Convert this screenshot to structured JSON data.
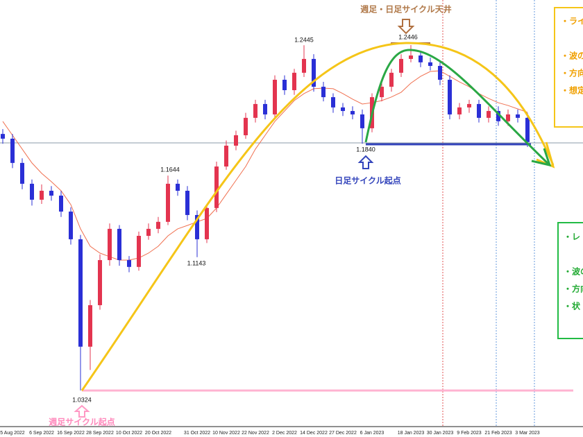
{
  "chart_data": {
    "type": "candlestick",
    "categories": [
      null,
      "5 Aug 2022",
      null,
      null,
      "6 Sep 2022",
      null,
      null,
      "16 Sep 2022",
      null,
      null,
      "28 Sep 2022",
      null,
      null,
      "10 Oct 2022",
      null,
      null,
      "20 Oct 2022",
      null,
      null,
      null,
      "31 Oct 2022",
      null,
      null,
      "10 Nov 2022",
      null,
      null,
      "22 Nov 2022",
      null,
      null,
      "2 Dec 2022",
      null,
      null,
      "14 Dec 2022",
      null,
      null,
      "27 Dec 2022",
      null,
      null,
      "6 Jan 2023",
      null,
      null,
      null,
      "18 Jan 2023",
      null,
      null,
      "30 Jan 2023",
      null,
      null,
      "9 Feb 2023",
      null,
      null,
      "21 Feb 2023",
      null,
      null,
      "3 Mar 2023"
    ],
    "ohlc": [
      [
        1.19,
        1.193,
        1.184,
        1.1871
      ],
      [
        1.1871,
        1.19,
        1.169,
        1.1722
      ],
      [
        1.1722,
        1.175,
        1.156,
        1.1594
      ],
      [
        1.1594,
        1.162,
        1.146,
        1.1496
      ],
      [
        1.1496,
        1.159,
        1.147,
        1.1551
      ],
      [
        1.1551,
        1.158,
        1.149,
        1.1521
      ],
      [
        1.1521,
        1.155,
        1.139,
        1.1423
      ],
      [
        1.1423,
        1.145,
        1.122,
        1.1253
      ],
      [
        1.1253,
        1.128,
        1.0324,
        1.0593
      ],
      [
        1.0593,
        1.088,
        1.045,
        1.0848
      ],
      [
        1.0848,
        1.116,
        1.082,
        1.1125
      ],
      [
        1.1125,
        1.135,
        1.109,
        1.1317
      ],
      [
        1.1317,
        1.134,
        1.109,
        1.1125
      ],
      [
        1.1125,
        1.115,
        1.105,
        1.1083
      ],
      [
        1.1083,
        1.13,
        1.106,
        1.1274
      ],
      [
        1.1274,
        1.135,
        1.125,
        1.1317
      ],
      [
        1.1317,
        1.139,
        1.129,
        1.136
      ],
      [
        1.136,
        1.1644,
        1.134,
        1.1594
      ],
      [
        1.1594,
        1.162,
        1.152,
        1.1551
      ],
      [
        1.1551,
        1.158,
        1.137,
        1.1402
      ],
      [
        1.1402,
        1.143,
        1.1143,
        1.1253
      ],
      [
        1.1253,
        1.147,
        1.123,
        1.1445
      ],
      [
        1.1445,
        1.173,
        1.142,
        1.17
      ],
      [
        1.17,
        1.186,
        1.168,
        1.1828
      ],
      [
        1.1828,
        1.192,
        1.18,
        1.1892
      ],
      [
        1.1892,
        1.203,
        1.187,
        1.1999
      ],
      [
        1.1999,
        1.211,
        1.197,
        1.2084
      ],
      [
        1.2084,
        1.211,
        1.199,
        1.202
      ],
      [
        1.202,
        1.226,
        1.2,
        1.2233
      ],
      [
        1.2233,
        1.226,
        1.214,
        1.2169
      ],
      [
        1.2169,
        1.23,
        1.214,
        1.2276
      ],
      [
        1.2276,
        1.2445,
        1.225,
        1.2361
      ],
      [
        1.2361,
        1.239,
        1.216,
        1.219
      ],
      [
        1.219,
        1.222,
        1.21,
        1.2126
      ],
      [
        1.2126,
        1.215,
        1.203,
        1.2063
      ],
      [
        1.2063,
        1.209,
        1.201,
        1.2041
      ],
      [
        1.2041,
        1.207,
        1.199,
        1.202
      ],
      [
        1.202,
        1.205,
        1.184,
        1.1935
      ],
      [
        1.1935,
        1.215,
        1.191,
        1.2126
      ],
      [
        1.2126,
        1.222,
        1.21,
        1.219
      ],
      [
        1.219,
        1.23,
        1.216,
        1.2276
      ],
      [
        1.2276,
        1.239,
        1.225,
        1.2361
      ],
      [
        1.2361,
        1.2446,
        1.234,
        1.2382
      ],
      [
        1.2382,
        1.241,
        1.231,
        1.234
      ],
      [
        1.234,
        1.237,
        1.229,
        1.2318
      ],
      [
        1.2318,
        1.235,
        1.22,
        1.2233
      ],
      [
        1.2233,
        1.226,
        1.199,
        1.202
      ],
      [
        1.202,
        1.209,
        1.199,
        1.2063
      ],
      [
        1.2063,
        1.211,
        1.203,
        1.2084
      ],
      [
        1.2084,
        1.211,
        1.197,
        1.1999
      ],
      [
        1.1999,
        1.207,
        1.197,
        1.2041
      ],
      [
        1.2041,
        1.207,
        1.195,
        1.1978
      ],
      [
        1.1978,
        1.205,
        1.195,
        1.202
      ],
      [
        1.202,
        1.205,
        1.197,
        1.1999
      ],
      [
        1.1999,
        1.203,
        1.182,
        1.185
      ]
    ],
    "up_color": "#e3344f",
    "down_color": "#2a2fd6",
    "ma": {
      "color": "#f07050",
      "values": [
        1.1977,
        1.1892,
        1.1807,
        1.1722,
        1.1658,
        1.1607,
        1.1551,
        1.1466,
        1.1317,
        1.121,
        1.1168,
        1.1146,
        1.1125,
        1.1125,
        1.1138,
        1.1168,
        1.121,
        1.1274,
        1.1317,
        1.1338,
        1.136,
        1.1381,
        1.1445,
        1.153,
        1.1615,
        1.17,
        1.1807,
        1.1892,
        1.1977,
        1.2041,
        1.2105,
        1.2148,
        1.2178,
        1.2182,
        1.2178,
        1.2148,
        1.2114,
        1.2084,
        1.2092,
        1.2105,
        1.2127,
        1.2156,
        1.2212,
        1.2254,
        1.2284,
        1.2288,
        1.2254,
        1.222,
        1.219,
        1.2148,
        1.2118,
        1.2092,
        1.2075,
        1.2054,
        1.2033
      ]
    },
    "ylim": [
      1.0102,
      1.2723
    ],
    "annotations": {
      "ceiling": "週足・日足サイクル天井",
      "daily_start": "日足サイクル起点",
      "weekly_start": "週足サイクル起点",
      "price_labels": [
        "1.2445",
        "1.2446",
        "1.1840",
        "1.1644",
        "1.1143",
        "1.0324"
      ]
    },
    "side_notes": {
      "orange": [
        "・ライ",
        "・波の",
        "・方向",
        "・想定"
      ],
      "green": [
        "・レ",
        "・波の",
        "・方向",
        "・状"
      ]
    }
  }
}
